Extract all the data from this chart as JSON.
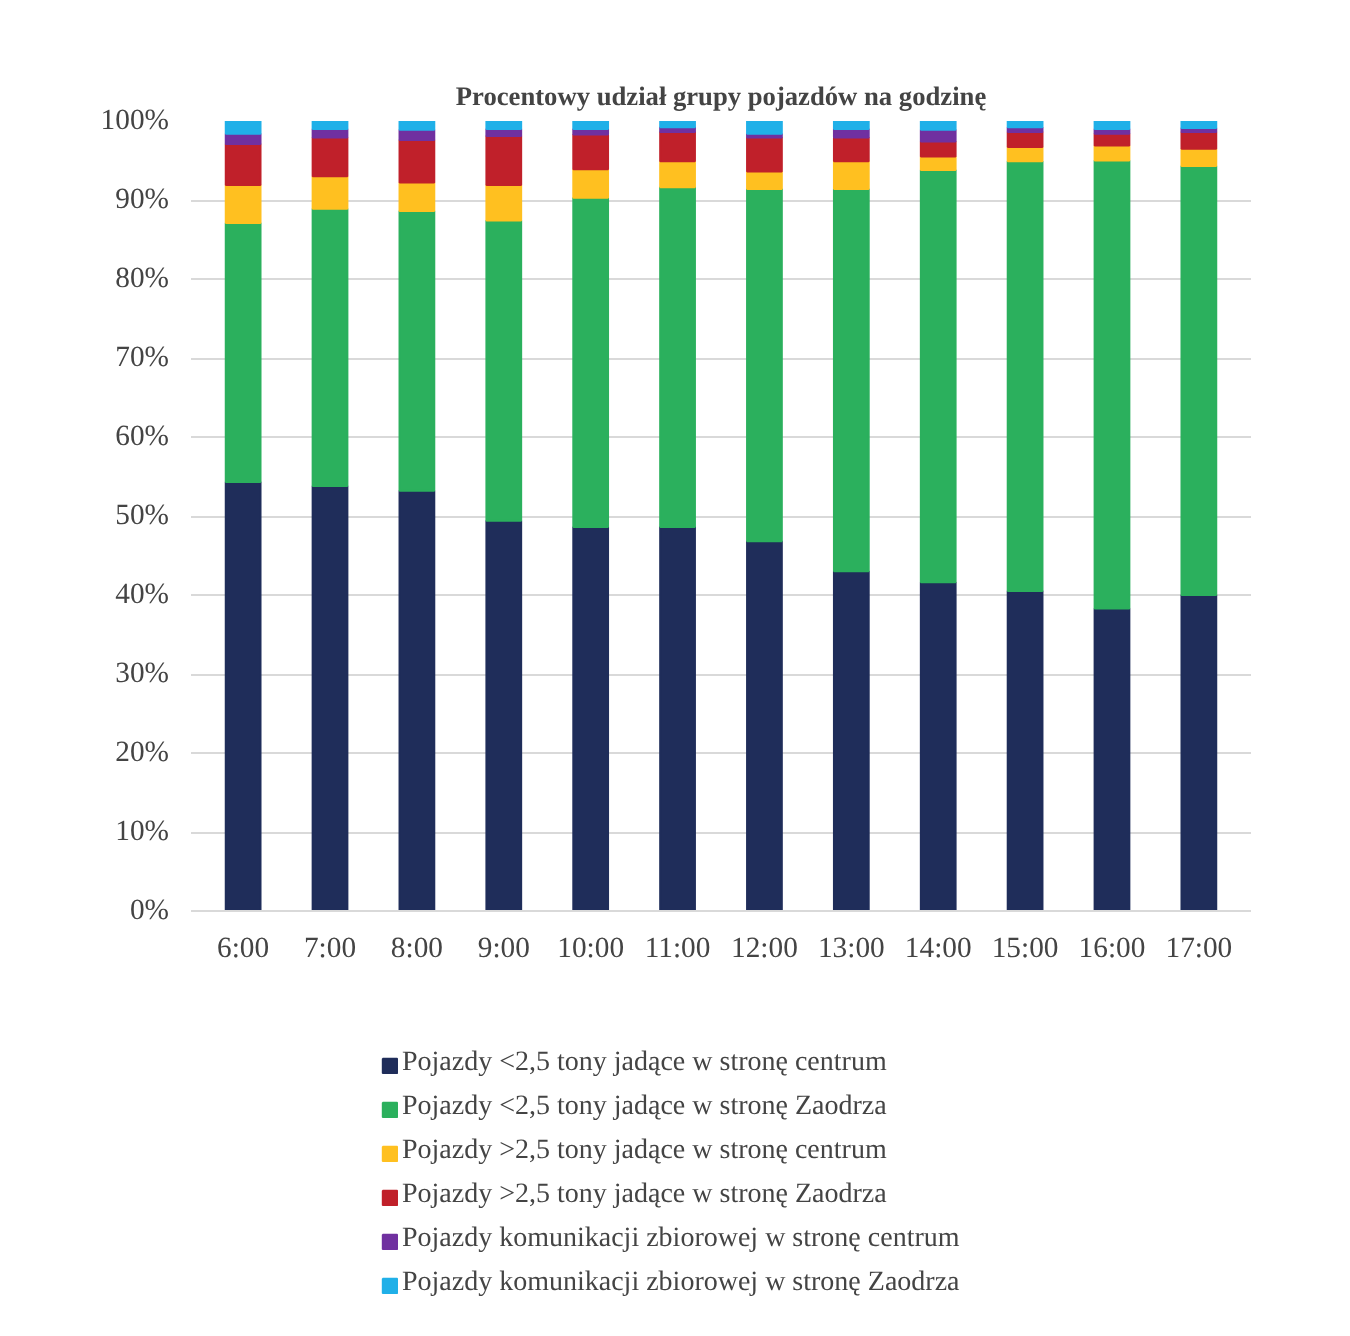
{
  "chart_data": {
    "type": "bar",
    "stacked": true,
    "title": "Procentowy udział grupy pojazdów na godzinę",
    "categories": [
      "6:00",
      "7:00",
      "8:00",
      "9:00",
      "10:00",
      "11:00",
      "12:00",
      "13:00",
      "14:00",
      "15:00",
      "16:00",
      "17:00"
    ],
    "series": [
      {
        "name": "Pojazdy <2,5 tony jadące w stronę centrum",
        "color": "#1f2d5a",
        "values": [
          54.3,
          53.8,
          53.2,
          49.4,
          48.6,
          48.6,
          46.8,
          43.0,
          41.6,
          40.5,
          38.3,
          40.0
        ]
      },
      {
        "name": "Pojazdy <2,5 tony jadące w stronę Zaodrza",
        "color": "#2bb05d",
        "values": [
          32.8,
          35.1,
          35.4,
          38.0,
          41.7,
          43.0,
          44.6,
          48.4,
          52.2,
          54.4,
          56.7,
          54.3
        ]
      },
      {
        "name": "Pojazdy >2,5 tony jadące w stronę centrum",
        "color": "#ffc020",
        "values": [
          4.8,
          4.1,
          3.6,
          4.5,
          3.6,
          3.3,
          2.2,
          3.5,
          1.7,
          1.8,
          1.9,
          2.2
        ]
      },
      {
        "name": "Pojazdy >2,5 tony jadące w stronę Zaodrza",
        "color": "#c0202a",
        "values": [
          5.2,
          4.9,
          5.4,
          6.2,
          4.4,
          3.7,
          4.3,
          3.0,
          1.9,
          1.9,
          1.5,
          2.1
        ]
      },
      {
        "name": "Pojazdy komunikacji zbiorowej w stronę centrum",
        "color": "#7030a0",
        "values": [
          1.3,
          1.1,
          1.3,
          0.9,
          0.7,
          0.6,
          0.5,
          1.1,
          1.5,
          0.6,
          0.6,
          0.5
        ]
      },
      {
        "name": "Pojazdy komunikacji zbiorowej w stronę Zaodrza",
        "color": "#20b0e8",
        "values": [
          1.6,
          1.0,
          1.1,
          1.0,
          1.0,
          0.8,
          1.6,
          1.0,
          1.1,
          0.8,
          1.0,
          0.9
        ]
      }
    ],
    "ylim": [
      0,
      100
    ],
    "yticks": [
      {
        "value": 0,
        "label": "0%"
      },
      {
        "value": 10,
        "label": "10%"
      },
      {
        "value": 20,
        "label": "20%"
      },
      {
        "value": 30,
        "label": "30%"
      },
      {
        "value": 40,
        "label": "40%"
      },
      {
        "value": 50,
        "label": "50%"
      },
      {
        "value": 60,
        "label": "60%"
      },
      {
        "value": 70,
        "label": "70%"
      },
      {
        "value": 80,
        "label": "80%"
      },
      {
        "value": 90,
        "label": "90%"
      },
      {
        "value": 100,
        "label": "100%"
      }
    ],
    "grid": "y",
    "legend": "bottom"
  }
}
